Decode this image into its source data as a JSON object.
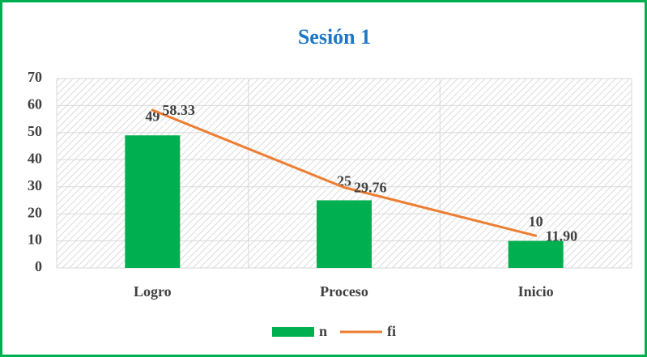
{
  "chart_data": {
    "type": "bar",
    "title": "Sesión 1",
    "categories": [
      "Logro",
      "Proceso",
      "Inicio"
    ],
    "series": [
      {
        "name": "n",
        "type": "bar",
        "color": "#00b050",
        "values": [
          49,
          25,
          10
        ]
      },
      {
        "name": "fi",
        "type": "line",
        "color": "#ed7d31",
        "values": [
          58.33,
          29.76,
          11.9
        ],
        "value_labels": [
          "58.33",
          "29.76",
          "11.90"
        ]
      }
    ],
    "ylim": [
      0,
      70
    ],
    "yticks": [
      0,
      10,
      20,
      30,
      40,
      50,
      60,
      70
    ],
    "grid": true,
    "legend": "bottom"
  }
}
